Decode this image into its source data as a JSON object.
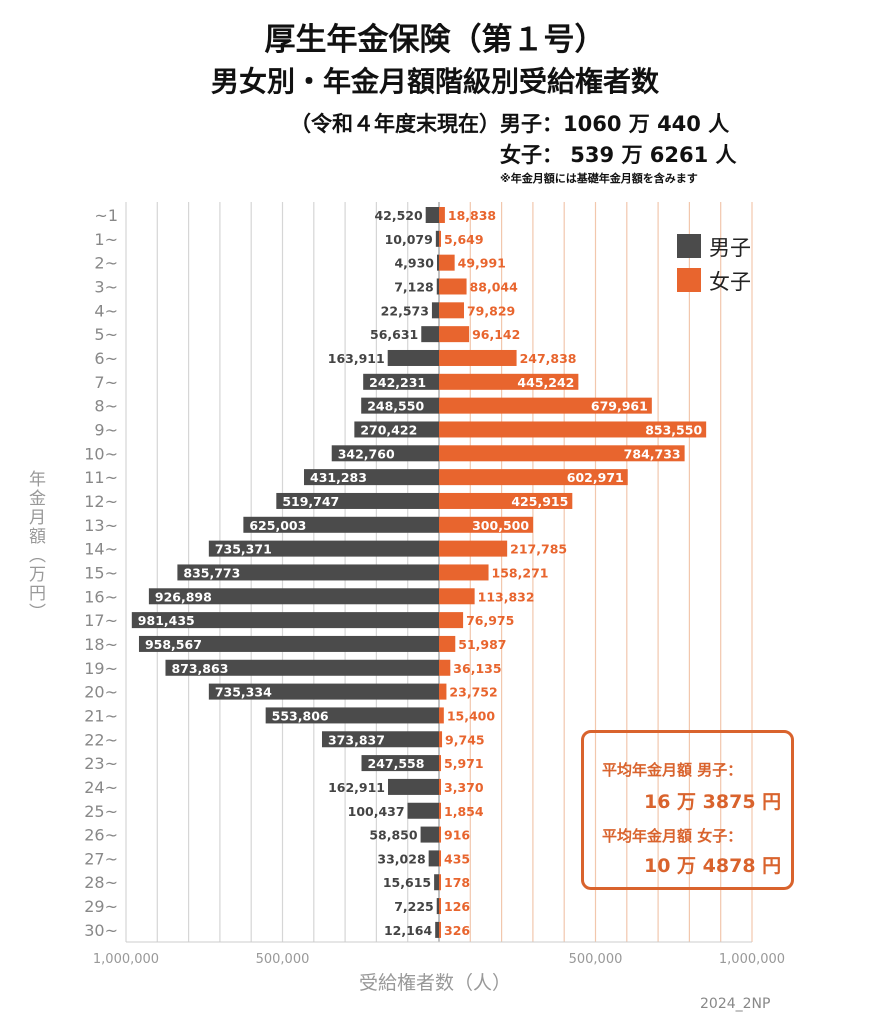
{
  "header": {
    "title_line1": "厚生年金保険（第１号）",
    "title_line2": "男女別・年金月額階級別受給権者数",
    "subtitle_male": "（令和４年度末現在）男子：1060 万 440 人",
    "subtitle_female": "女子：  539 万 6261 人",
    "note": "※年金月額には基礎年金月額を含みます"
  },
  "average_box": {
    "male_label": "平均年金月額  男子：",
    "male_value": "16 万 3875 円",
    "female_label": "平均年金月額  女子：",
    "female_value": "10 万 4878 円"
  },
  "credit": "2024_2NP",
  "colors": {
    "male": "#4b4b4b",
    "female": "#e8652e",
    "accent": "#d9632d"
  },
  "chart_data": {
    "type": "bar",
    "orientation": "horizontal-butterfly",
    "ylabel": "年金月額（万円）",
    "xlabel": "受給権者数（人）",
    "xlim": [
      -1000000,
      1000000
    ],
    "x_tick_labels": [
      "1,000,000",
      "500,000",
      "",
      "500,000",
      "1,000,000"
    ],
    "x_ticks": [
      -1000000,
      -500000,
      0,
      500000,
      1000000
    ],
    "grid": true,
    "legend": "top-right",
    "categories": [
      "~1",
      "1~",
      "2~",
      "3~",
      "4~",
      "5~",
      "6~",
      "7~",
      "8~",
      "9~",
      "10~",
      "11~",
      "12~",
      "13~",
      "14~",
      "15~",
      "16~",
      "17~",
      "18~",
      "19~",
      "20~",
      "21~",
      "22~",
      "23~",
      "24~",
      "25~",
      "26~",
      "27~",
      "28~",
      "29~",
      "30~"
    ],
    "series": [
      {
        "name": "男子",
        "side": "left",
        "values": [
          42520,
          10079,
          4930,
          7128,
          22573,
          56631,
          163911,
          242231,
          248550,
          270422,
          342760,
          431283,
          519747,
          625003,
          735371,
          835773,
          926898,
          981435,
          958567,
          873863,
          735334,
          553806,
          373837,
          247558,
          162911,
          100437,
          58850,
          33028,
          15615,
          7225,
          12164
        ]
      },
      {
        "name": "女子",
        "side": "right",
        "values": [
          18838,
          5649,
          49991,
          88044,
          79829,
          96142,
          247838,
          445242,
          679961,
          853550,
          784733,
          602971,
          425915,
          300500,
          217785,
          158271,
          113832,
          76975,
          51987,
          36135,
          23752,
          15400,
          9745,
          5971,
          3370,
          1854,
          916,
          435,
          178,
          126,
          326
        ]
      }
    ]
  }
}
